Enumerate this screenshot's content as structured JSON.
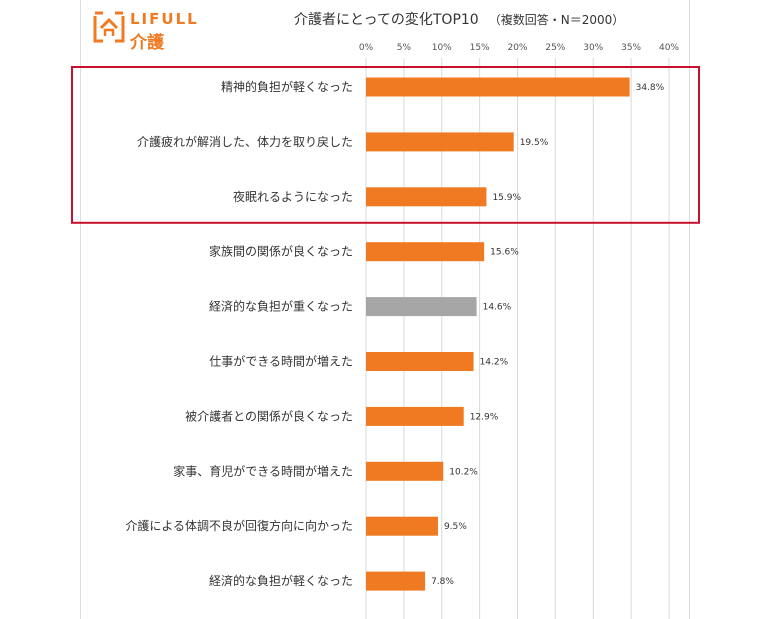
{
  "brand": {
    "name": "LIFULL",
    "sub": "介護",
    "accent_color": "#f07a22",
    "icon": "house-logo-icon"
  },
  "header": {
    "title": "介護者にとっての変化TOP10",
    "note": "（複数回答・N＝2000）"
  },
  "chart_data": {
    "type": "bar",
    "orientation": "horizontal",
    "title": "介護者にとっての変化TOP10",
    "subtitle": "（複数回答・N＝2000）",
    "xlabel": "",
    "ylabel": "",
    "xlim": [
      0,
      40
    ],
    "ticks": [
      0,
      5,
      10,
      15,
      20,
      25,
      30,
      35,
      40
    ],
    "tick_labels": [
      "0%",
      "5%",
      "10%",
      "15%",
      "20%",
      "25%",
      "30%",
      "35%",
      "40%"
    ],
    "categories": [
      "精神的負担が軽くなった",
      "介護疲れが解消した、体力を取り戻した",
      "夜眠れるようになった",
      "家族間の関係が良くなった",
      "経済的な負担が重くなった",
      "仕事ができる時間が増えた",
      "被介護者との関係が良くなった",
      "家事、育児ができる時間が増えた",
      "介護による体調不良が回復方向に向かった",
      "経済的な負担が軽くなった"
    ],
    "values": [
      34.8,
      19.5,
      15.9,
      15.6,
      14.6,
      14.2,
      12.9,
      10.2,
      9.5,
      7.8
    ],
    "value_labels": [
      "34.8%",
      "19.5%",
      "15.9%",
      "15.6%",
      "14.6%",
      "14.2%",
      "12.9%",
      "10.2%",
      "9.5%",
      "7.8%"
    ],
    "bar_colors": [
      "#f07a22",
      "#f07a22",
      "#f07a22",
      "#f07a22",
      "#a6a6a6",
      "#f07a22",
      "#f07a22",
      "#f07a22",
      "#f07a22",
      "#f07a22"
    ],
    "grid": true,
    "highlight": {
      "from_index": 0,
      "to_index": 2,
      "color": "#c8102e"
    }
  }
}
